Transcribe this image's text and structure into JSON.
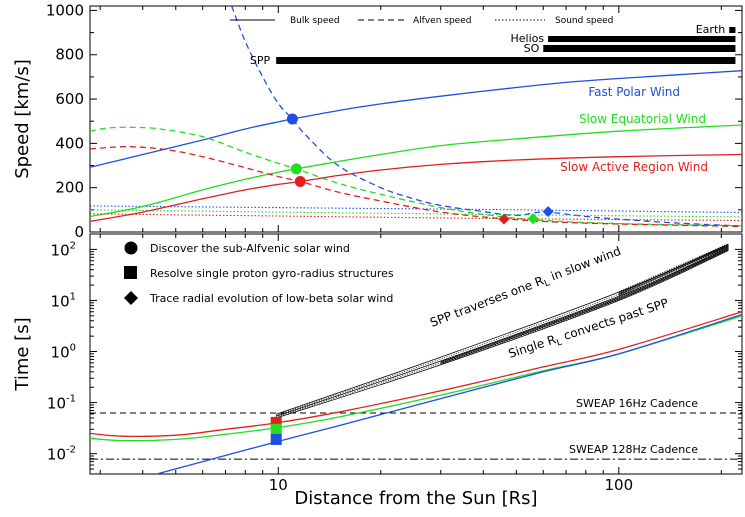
{
  "chart_data": [
    {
      "type": "line",
      "panel": "top",
      "ylabel": "Speed [km/s]",
      "xscale": "log",
      "xlim": [
        2.8,
        230
      ],
      "ylim": [
        0,
        1020
      ],
      "yticks": [
        0,
        200,
        400,
        600,
        800,
        1000
      ],
      "legend": [
        "Bulk speed",
        "Alfven speed",
        "Sound speed"
      ],
      "bar_labels": [
        "Earth",
        "Helios",
        "SO",
        "SPP"
      ],
      "bar_ranges": [
        [
          211,
          220
        ],
        [
          62,
          220
        ],
        [
          60,
          220
        ],
        [
          9.86,
          220
        ]
      ],
      "series": [
        {
          "name": "Fast Polar Wind",
          "color": "#1f4fe0",
          "bulk": {
            "x": [
              2.8,
              4,
              6,
              8,
              10,
              11,
              15,
              20,
              30,
              50,
              70,
              100,
              150,
              230
            ],
            "y": [
              292,
              350,
              415,
              465,
              497,
              510,
              548,
              578,
              613,
              652,
              675,
              693,
              710,
              728
            ]
          },
          "alfven": {
            "x": [
              7.3,
              8,
              9,
              10,
              11,
              12,
              15,
              20,
              25,
              30,
              40,
              50,
              60,
              80,
              100,
              150,
              230
            ],
            "y": [
              1020,
              860,
              700,
              580,
              510,
              440,
              300,
              200,
              150,
              120,
              92,
              75,
              90,
              70,
              58,
              40,
              27
            ]
          },
          "sound": {
            "x": [
              2.8,
              10,
              50,
              230
            ],
            "y": [
              118,
              110,
              100,
              88
            ]
          },
          "alfven_crossing": {
            "x": 11,
            "y": 510
          },
          "diamond": {
            "x": 62,
            "y": 92
          }
        },
        {
          "name": "Slow Equatorial Wind",
          "color": "#22dd22",
          "bulk": {
            "x": [
              2.8,
              4,
              6,
              8,
              10,
              11.3,
              15,
              20,
              30,
              50,
              100,
              230
            ],
            "y": [
              70,
              115,
              190,
              238,
              270,
              285,
              318,
              350,
              390,
              420,
              455,
              483
            ]
          },
          "alfven": {
            "x": [
              2.8,
              3.2,
              3.8,
              4.5,
              6,
              8,
              10,
              11.3,
              15,
              20,
              30,
              40,
              56,
              100,
              230
            ],
            "y": [
              455,
              470,
              472,
              465,
              430,
              360,
              310,
              285,
              220,
              170,
              110,
              80,
              55,
              38,
              28
            ]
          },
          "sound": {
            "x": [
              2.8,
              10,
              50,
              230
            ],
            "y": [
              100,
              90,
              78,
              68
            ]
          },
          "alfven_crossing": {
            "x": 11.3,
            "y": 285
          },
          "diamond": {
            "x": 56,
            "y": 60
          }
        },
        {
          "name": "Slow Active Region Wind",
          "color": "#e02020",
          "bulk": {
            "x": [
              2.8,
              4,
              6,
              8,
              10,
              11.6,
              15,
              20,
              30,
              50,
              100,
              230
            ],
            "y": [
              48,
              90,
              150,
              190,
              215,
              228,
              255,
              280,
              305,
              325,
              340,
              350
            ]
          },
          "alfven": {
            "x": [
              2.8,
              3.5,
              4.2,
              5,
              6,
              8,
              10,
              11.6,
              15,
              20,
              30,
              46,
              80,
              230
            ],
            "y": [
              375,
              385,
              380,
              365,
              340,
              290,
              250,
              228,
              180,
              140,
              90,
              60,
              40,
              25
            ]
          },
          "sound": {
            "x": [
              2.8,
              10,
              50,
              230
            ],
            "y": [
              82,
              72,
              60,
              52
            ]
          },
          "alfven_crossing": {
            "x": 11.6,
            "y": 228
          },
          "diamond": {
            "x": 46,
            "y": 58
          }
        }
      ]
    },
    {
      "type": "line",
      "panel": "bottom",
      "xlabel": "Distance from the Sun [Rs]",
      "ylabel": "Time [s]",
      "xscale": "log",
      "yscale": "log",
      "xlim": [
        2.8,
        230
      ],
      "ylim": [
        0.004,
        200
      ],
      "xticks": [
        10,
        100
      ],
      "ytick_exponents": [
        -2,
        -1,
        0,
        1,
        2
      ],
      "legend": [
        {
          "marker": "circle",
          "label": "Discover the sub-Alfvenic solar wind"
        },
        {
          "marker": "square",
          "label": "Resolve single proton gyro-radius structures"
        },
        {
          "marker": "diamond",
          "label": "Trace radial evolution of low-beta solar wind"
        }
      ],
      "annotations": {
        "traverse": "SPP traverses one R",
        "traverse_tail": "in slow wind",
        "convect": "Single R",
        "convect_tail": "convects past SPP",
        "sub": "L"
      },
      "cadence_lines": [
        {
          "label": "SWEAP 16Hz Cadence",
          "y": 0.0625,
          "style": "dashed"
        },
        {
          "label": "SWEAP 128Hz Cadence",
          "y": 0.0078,
          "style": "dashdot"
        }
      ],
      "series": [
        {
          "name": "Slow Active Region Wind",
          "color": "#e02020",
          "x": [
            2.8,
            3.5,
            5,
            7,
            9.86,
            15,
            30,
            60,
            100,
            230
          ],
          "y": [
            0.025,
            0.022,
            0.023,
            0.03,
            0.04,
            0.065,
            0.17,
            0.5,
            1.1,
            6
          ]
        },
        {
          "name": "Slow Equatorial Wind",
          "color": "#22dd22",
          "x": [
            2.8,
            3.5,
            5,
            7,
            9.86,
            15,
            30,
            60,
            100,
            230
          ],
          "y": [
            0.02,
            0.018,
            0.019,
            0.024,
            0.032,
            0.052,
            0.14,
            0.42,
            0.9,
            5
          ]
        },
        {
          "name": "Fast Polar Wind",
          "color": "#1f4fe0",
          "x": [
            4.4,
            6,
            9.86,
            15,
            30,
            60,
            100,
            230
          ],
          "y": [
            0.004,
            0.007,
            0.017,
            0.035,
            0.12,
            0.4,
            0.9,
            5.3
          ]
        }
      ],
      "squares": [
        {
          "color": "#e02020",
          "x": 9.86,
          "y": 0.041
        },
        {
          "color": "#22dd22",
          "x": 9.86,
          "y": 0.03
        },
        {
          "color": "#1f4fe0",
          "x": 9.86,
          "y": 0.019
        }
      ],
      "traverse_band": {
        "x": [
          9.86,
          30,
          100,
          210
        ],
        "y_low": [
          0.05,
          0.55,
          10,
          95
        ],
        "y_high": [
          0.06,
          0.8,
          15,
          130
        ]
      }
    }
  ]
}
